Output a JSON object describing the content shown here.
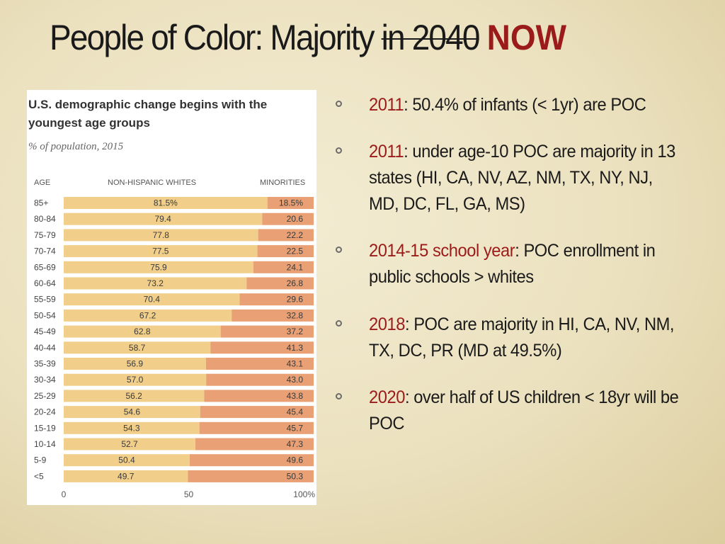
{
  "title": {
    "main": "People of Color: Majority",
    "struck": "in 2040",
    "emphasis": "NOW",
    "emphasis_color": "#9b1b1b"
  },
  "bullets": [
    {
      "highlight": "2011",
      "text": ": 50.4% of infants (< 1yr) are POC"
    },
    {
      "highlight": "2011",
      "text": ": under age-10 POC are majority in 13 states (HI, CA, NV, AZ, NM, TX, NY, NJ, MD, DC, FL, GA, MS)"
    },
    {
      "highlight": "2014-15 school year",
      "text": ": POC enrollment in public schools > whites"
    },
    {
      "highlight": "2018",
      "text": ": POC are majority in HI, CA, NV, NM, TX, DC, PR (MD at 49.5%)"
    },
    {
      "highlight": "2020",
      "text": ": over half of US children < 18yr will be POC"
    }
  ],
  "chart_data": {
    "type": "bar",
    "stacked": true,
    "orientation": "horizontal",
    "title": "U.S. demographic change begins with the youngest age groups",
    "subtitle": "% of population, 2015",
    "column_headers": {
      "age": "AGE",
      "whites": "NON-HISPANIC WHITES",
      "minorities": "MINORITIES"
    },
    "categories": [
      "85+",
      "80-84",
      "75-79",
      "70-74",
      "65-69",
      "60-64",
      "55-59",
      "50-54",
      "45-49",
      "40-44",
      "35-39",
      "30-34",
      "25-29",
      "20-24",
      "15-19",
      "10-14",
      "5-9",
      "<5"
    ],
    "series": [
      {
        "name": "Non-Hispanic whites",
        "color": "#f1cf8a",
        "values": [
          81.5,
          79.4,
          77.8,
          77.5,
          75.9,
          73.2,
          70.4,
          67.2,
          62.8,
          58.7,
          56.9,
          57.0,
          56.2,
          54.6,
          54.3,
          52.7,
          50.4,
          49.7
        ],
        "labels": [
          "81.5%",
          "79.4",
          "77.8",
          "77.5",
          "75.9",
          "73.2",
          "70.4",
          "67.2",
          "62.8",
          "58.7",
          "56.9",
          "57.0",
          "56.2",
          "54.6",
          "54.3",
          "52.7",
          "50.4",
          "49.7"
        ]
      },
      {
        "name": "Minorities",
        "color": "#e8a074",
        "values": [
          18.5,
          20.6,
          22.2,
          22.5,
          24.1,
          26.8,
          29.6,
          32.8,
          37.2,
          41.3,
          43.1,
          43.0,
          43.8,
          45.4,
          45.7,
          47.3,
          49.6,
          50.3
        ],
        "labels": [
          "18.5%",
          "20.6",
          "22.2",
          "22.5",
          "24.1",
          "26.8",
          "29.6",
          "32.8",
          "37.2",
          "41.3",
          "43.1",
          "43.0",
          "43.8",
          "45.4",
          "45.7",
          "47.3",
          "49.6",
          "50.3"
        ]
      }
    ],
    "xlim": [
      0,
      100
    ],
    "xticks": [
      "0",
      "50",
      "100%"
    ]
  }
}
